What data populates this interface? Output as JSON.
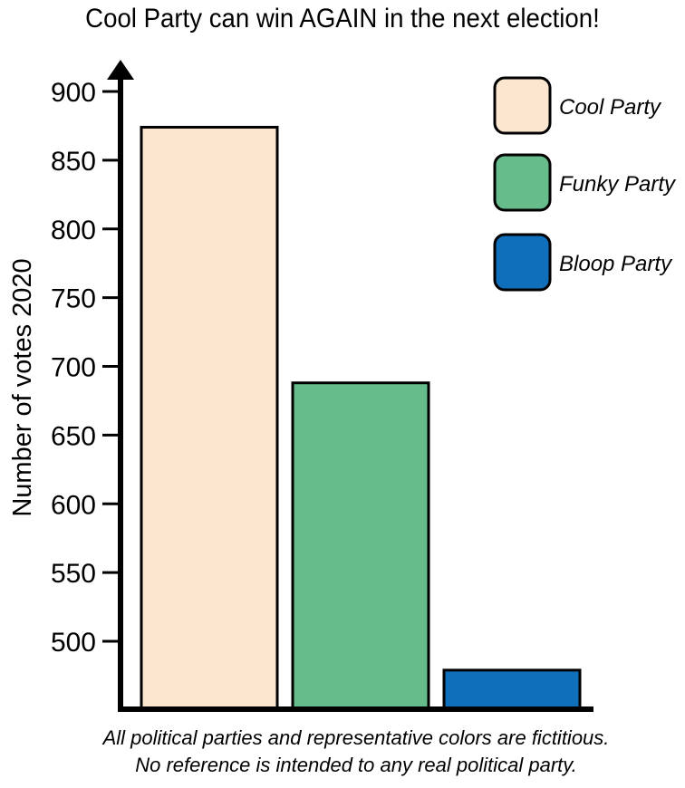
{
  "chart_data": {
    "type": "bar",
    "title": "Cool Party can win AGAIN in the next election!",
    "ylabel": "Number of votes 2020",
    "xlabel": "",
    "categories": [
      "Cool Party",
      "Funky Party",
      "Bloop Party"
    ],
    "values": [
      874,
      688,
      479
    ],
    "colors": [
      "#fce6cf",
      "#66bd8b",
      "#0f6fba"
    ],
    "ylim": [
      460,
      920
    ],
    "yticks": [
      500,
      550,
      600,
      650,
      700,
      750,
      800,
      850,
      900
    ],
    "grid": false,
    "legend": {
      "position": "top-right",
      "entries": [
        {
          "label": "Cool Party",
          "color": "#fce6cf"
        },
        {
          "label": "Funky Party",
          "color": "#66bd8b"
        },
        {
          "label": "Bloop Party",
          "color": "#0f6fba"
        }
      ]
    },
    "footnote": [
      "All political parties and representative colors are fictitious.",
      "No reference is intended to any real political party."
    ]
  }
}
